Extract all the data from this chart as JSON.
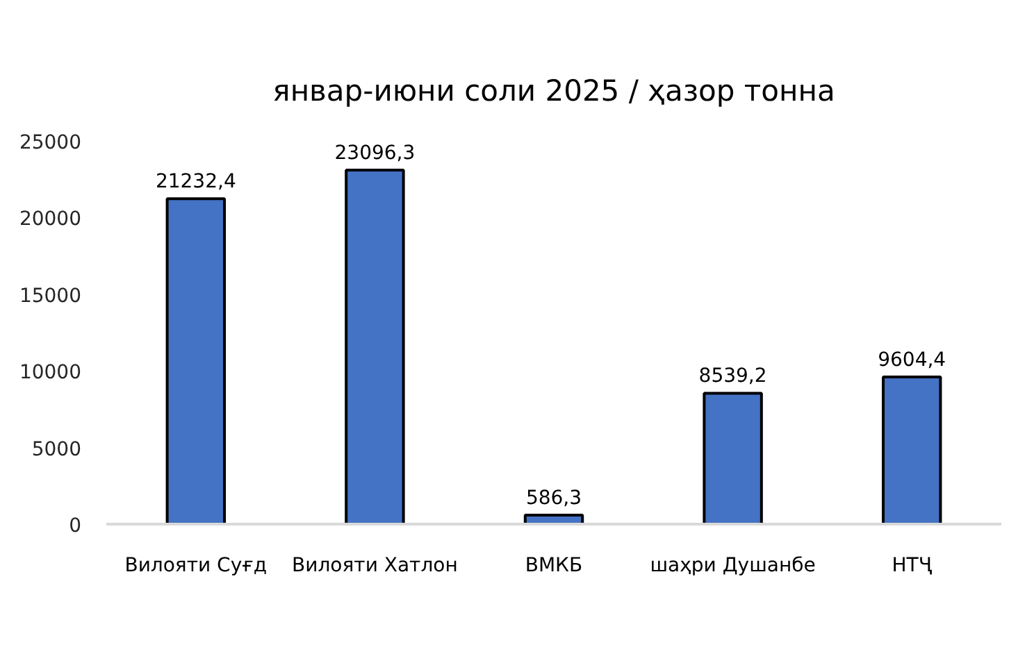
{
  "chart_data": {
    "type": "bar",
    "title": "январ-июни соли 2025 / ҳазор тонна",
    "categories": [
      "Вилояти Суғд",
      "Вилояти Хатлон",
      "ВМКБ",
      "шаҳри Душанбе",
      "НТҶ"
    ],
    "values": [
      21232.4,
      23096.3,
      586.3,
      8539.2,
      9604.4
    ],
    "value_labels": [
      "21232,4",
      "23096,3",
      "586,3",
      "8539,2",
      "9604,4"
    ],
    "color": "#4472c4",
    "ylim": [
      0,
      25000
    ],
    "yticks": [
      0,
      5000,
      10000,
      15000,
      20000,
      25000
    ],
    "grid": false
  }
}
